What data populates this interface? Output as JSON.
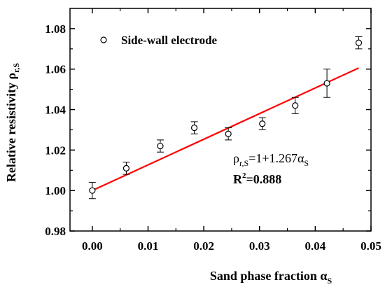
{
  "chart_data": {
    "type": "scatter",
    "xlabel": {
      "main": "Sand phase fraction α",
      "sub": "S"
    },
    "ylabel": {
      "main": "Relative resistivity ρ",
      "sub": "r,S"
    },
    "xlim": [
      -0.004,
      0.05
    ],
    "ylim": [
      0.98,
      1.09
    ],
    "xticks": [
      "0.00",
      "0.01",
      "0.02",
      "0.03",
      "0.04",
      "0.05"
    ],
    "yticks": [
      "0.98",
      "1.00",
      "1.02",
      "1.04",
      "1.06",
      "1.08"
    ],
    "series": [
      {
        "name": "Side-wall electrode",
        "marker": "open-circle",
        "x": [
          0.0,
          0.0061,
          0.0122,
          0.0183,
          0.0244,
          0.0305,
          0.0364,
          0.0421,
          0.0478
        ],
        "y": [
          1.0,
          1.011,
          1.022,
          1.031,
          1.028,
          1.033,
          1.042,
          1.053,
          1.073
        ],
        "err": [
          0.004,
          0.003,
          0.003,
          0.003,
          0.003,
          0.003,
          0.004,
          0.007,
          0.003
        ]
      }
    ],
    "fit": {
      "intercept": 1.0,
      "slope": 1.267,
      "x_range": [
        0.0,
        0.0478
      ],
      "color": "#ff0000",
      "equation_parts": [
        "ρ",
        "r,S",
        "=1+1.267α",
        "S"
      ],
      "r2_parts": [
        "R",
        "2",
        "=0.888"
      ]
    },
    "legend_placement": "top-left",
    "grid": false
  }
}
